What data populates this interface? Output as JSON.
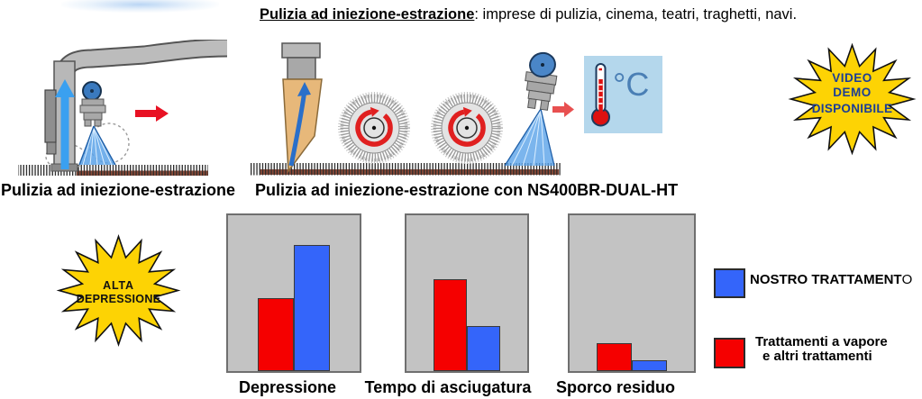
{
  "title": {
    "lead": "Pulizia ad iniezione-estrazione",
    "rest": ": imprese di pulizia, cinema, teatri, traghetti, navi."
  },
  "captions": {
    "left": "Pulizia ad iniezione-estrazione",
    "middle": "Pulizia ad iniezione-estrazione con NS400BR-DUAL-HT"
  },
  "badges": {
    "video_demo": {
      "lines": [
        "VIDEO",
        "DEMO",
        "DISPONIBILE"
      ],
      "fill": "#fdd304",
      "stroke": "#111111",
      "text_color": "#1c3e96"
    },
    "alta_depressione": {
      "lines": [
        "ALTA",
        "DEPRESSIONE"
      ],
      "fill": "#fdd304",
      "stroke": "#111111",
      "text_color": "#111111"
    }
  },
  "thermometer": {
    "unit_label": "°C"
  },
  "chart_data": [
    {
      "type": "bar",
      "title": "Depressione",
      "categories": [
        "Trattamenti a vapore e altri trattamenti",
        "Nostro trattamento"
      ],
      "values": [
        47,
        81
      ],
      "ylim": [
        0,
        100
      ],
      "colors": [
        "#f50000",
        "#3465fa"
      ],
      "grid": false,
      "note": "values are relative heights in % of panel"
    },
    {
      "type": "bar",
      "title": "Tempo di asciugatura",
      "categories": [
        "Trattamenti a vapore e altri trattamenti",
        "Nostro trattamento"
      ],
      "values": [
        59,
        29
      ],
      "ylim": [
        0,
        100
      ],
      "colors": [
        "#f50000",
        "#3465fa"
      ],
      "grid": false
    },
    {
      "type": "bar",
      "title": "Sporco residuo",
      "categories": [
        "Trattamenti a vapore e altri trattamenti",
        "Nostro trattamento"
      ],
      "values": [
        18,
        7
      ],
      "ylim": [
        0,
        100
      ],
      "colors": [
        "#f50000",
        "#3465fa"
      ],
      "grid": false
    }
  ],
  "legend": {
    "nostro": {
      "label_bold": "NOSTRO TRATTAMENT",
      "label_tail": "O",
      "color": "#3465fa"
    },
    "vapore": {
      "line1": "Trattamenti a vapore",
      "line2": "e altri trattamenti",
      "color": "#f50000"
    }
  }
}
